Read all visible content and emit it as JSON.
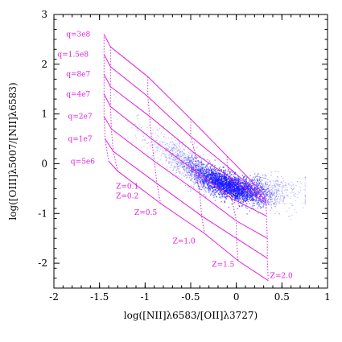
{
  "chart_data": {
    "type": "scatter",
    "title": "",
    "xlabel": "log([NII]λ6583/[OII]λ3727)",
    "ylabel": "log([OIII]λ5007/[NII]λ6583)",
    "xlim": [
      -2,
      1
    ],
    "ylim": [
      -2.5,
      3
    ],
    "xticks": [
      "-2",
      "-1.5",
      "-1",
      "-0.5",
      "0",
      "0.5",
      "1"
    ],
    "yticks": [
      "-2",
      "-1",
      "0",
      "1",
      "2",
      "3"
    ],
    "grid": false,
    "colors": {
      "points": "#1a1aff",
      "grid_lines": "#e020e0",
      "axes": "#000000"
    },
    "series": [
      {
        "kind": "density-cloud",
        "trend": [
          [
            -1.2,
            0.85
          ],
          [
            -0.9,
            0.4
          ],
          [
            -0.6,
            0.05
          ],
          [
            -0.35,
            -0.25
          ],
          [
            -0.15,
            -0.4
          ],
          [
            0.0,
            -0.5
          ],
          [
            0.15,
            -0.55
          ],
          [
            0.3,
            -0.6
          ]
        ],
        "point_count": 4000
      }
    ],
    "model_grid": {
      "q_labels": [
        "q=3e8",
        "q=1.5e8",
        "q=8e7",
        "q=4e7",
        "q=2e7",
        "q=1e7",
        "q=5e6"
      ],
      "z_labels": [
        "Z=0.1",
        "Z=0.2",
        "Z=0.5",
        "Z=1.0",
        "Z=1.5",
        "Z=2.0"
      ],
      "z_values": [
        0.1,
        0.2,
        0.5,
        1.0,
        1.5,
        2.0
      ],
      "grid": [
        [
          [
            -1.45,
            2.6
          ],
          [
            -1.38,
            2.35
          ],
          [
            -0.97,
            1.75
          ],
          [
            -0.5,
            0.9
          ],
          [
            -0.1,
            0.15
          ],
          [
            0.3,
            -0.6
          ]
        ],
        [
          [
            -1.45,
            2.2
          ],
          [
            -1.38,
            1.95
          ],
          [
            -0.97,
            1.35
          ],
          [
            -0.5,
            0.55
          ],
          [
            -0.1,
            -0.05
          ],
          [
            0.32,
            -0.72
          ]
        ],
        [
          [
            -1.45,
            1.8
          ],
          [
            -1.38,
            1.55
          ],
          [
            -0.95,
            0.95
          ],
          [
            -0.45,
            0.2
          ],
          [
            -0.05,
            -0.3
          ],
          [
            0.33,
            -0.8
          ]
        ],
        [
          [
            -1.45,
            1.4
          ],
          [
            -1.38,
            1.15
          ],
          [
            -0.93,
            0.5
          ],
          [
            -0.45,
            -0.15
          ],
          [
            -0.05,
            -0.7
          ],
          [
            0.33,
            -1.05
          ]
        ],
        [
          [
            -1.45,
            0.95
          ],
          [
            -1.37,
            0.7
          ],
          [
            -0.9,
            0.05
          ],
          [
            -0.4,
            -0.6
          ],
          [
            0.0,
            -1.15
          ],
          [
            0.34,
            -1.5
          ]
        ],
        [
          [
            -1.44,
            0.5
          ],
          [
            -1.35,
            0.25
          ],
          [
            -0.87,
            -0.4
          ],
          [
            -0.38,
            -1.05
          ],
          [
            0.0,
            -1.5
          ],
          [
            0.34,
            -1.9
          ]
        ],
        [
          [
            -1.4,
            0.05
          ],
          [
            -1.3,
            -0.15
          ],
          [
            -0.83,
            -0.8
          ],
          [
            -0.35,
            -1.4
          ],
          [
            0.02,
            -1.95
          ],
          [
            0.35,
            -2.35
          ]
        ]
      ]
    }
  }
}
